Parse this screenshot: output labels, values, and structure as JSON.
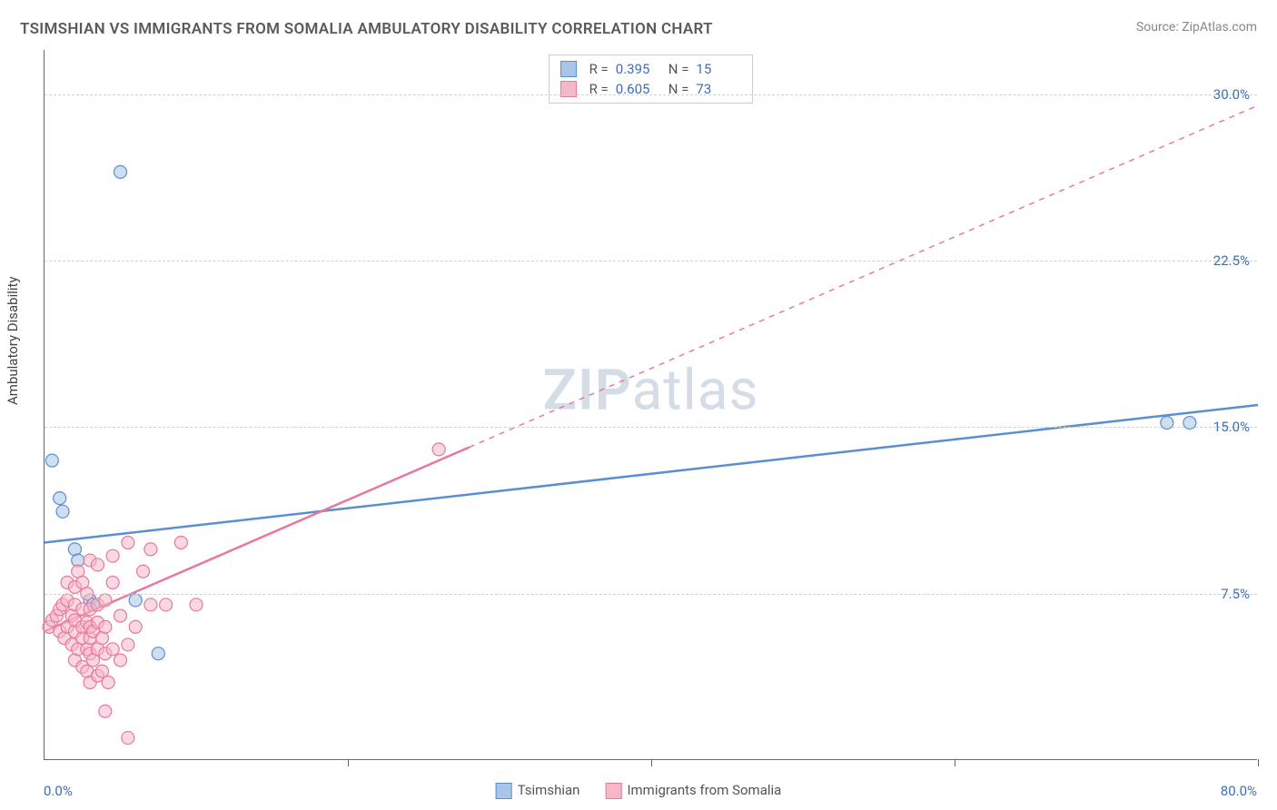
{
  "title": "TSIMSHIAN VS IMMIGRANTS FROM SOMALIA AMBULATORY DISABILITY CORRELATION CHART",
  "source": "Source: ZipAtlas.com",
  "ylabel": "Ambulatory Disability",
  "watermark_zip": "ZIP",
  "watermark_atlas": "atlas",
  "chart": {
    "type": "scatter-correlation",
    "background_color": "#ffffff",
    "grid_color": "#d0d0d0",
    "axis_color": "#666666",
    "text_color": "#5a5a5a",
    "value_color": "#3b6fb6",
    "xlim": [
      0,
      80
    ],
    "ylim": [
      0,
      32
    ],
    "xaxis_min_label": "0.0%",
    "xaxis_max_label": "80.0%",
    "xticks": [
      0,
      20,
      40,
      60,
      80
    ],
    "yticks": [
      {
        "v": 7.5,
        "label": "7.5%"
      },
      {
        "v": 15.0,
        "label": "15.0%"
      },
      {
        "v": 22.5,
        "label": "22.5%"
      },
      {
        "v": 30.0,
        "label": "30.0%"
      }
    ],
    "series": [
      {
        "name": "Tsimshian",
        "color_fill": "#a8c5e8",
        "color_stroke": "#5a8fd0",
        "legend_swatch_fill": "#a8c5e8",
        "legend_swatch_stroke": "#5a8fd0",
        "R": "0.395",
        "N": "15",
        "marker_radius": 7,
        "points": [
          [
            0.5,
            13.5
          ],
          [
            1.0,
            11.8
          ],
          [
            1.2,
            11.2
          ],
          [
            2.0,
            9.5
          ],
          [
            2.2,
            9.0
          ],
          [
            3.0,
            7.2
          ],
          [
            3.2,
            7.0
          ],
          [
            5.0,
            26.5
          ],
          [
            6.0,
            7.2
          ],
          [
            7.5,
            4.8
          ],
          [
            74.0,
            15.2
          ],
          [
            75.5,
            15.2
          ]
        ],
        "trend": {
          "x1": 0,
          "y1": 9.8,
          "x2": 80,
          "y2": 16.0,
          "solid_until_x": 80,
          "stroke_width": 2.5
        }
      },
      {
        "name": "Immigrants from Somalia",
        "color_fill": "#f4b8c8",
        "color_stroke": "#e77a9a",
        "legend_swatch_fill": "#f4b8c8",
        "legend_swatch_stroke": "#e77a9a",
        "R": "0.605",
        "N": "73",
        "marker_radius": 7,
        "points": [
          [
            0.3,
            6.0
          ],
          [
            0.5,
            6.3
          ],
          [
            0.8,
            6.5
          ],
          [
            1.0,
            5.8
          ],
          [
            1.0,
            6.8
          ],
          [
            1.2,
            7.0
          ],
          [
            1.3,
            5.5
          ],
          [
            1.5,
            6.0
          ],
          [
            1.5,
            7.2
          ],
          [
            1.5,
            8.0
          ],
          [
            1.8,
            5.2
          ],
          [
            1.8,
            6.5
          ],
          [
            2.0,
            4.5
          ],
          [
            2.0,
            5.8
          ],
          [
            2.0,
            6.3
          ],
          [
            2.0,
            7.0
          ],
          [
            2.0,
            7.8
          ],
          [
            2.2,
            5.0
          ],
          [
            2.2,
            8.5
          ],
          [
            2.5,
            4.2
          ],
          [
            2.5,
            5.5
          ],
          [
            2.5,
            6.0
          ],
          [
            2.5,
            6.8
          ],
          [
            2.5,
            8.0
          ],
          [
            2.8,
            4.0
          ],
          [
            2.8,
            5.0
          ],
          [
            2.8,
            6.2
          ],
          [
            2.8,
            7.5
          ],
          [
            3.0,
            3.5
          ],
          [
            3.0,
            4.8
          ],
          [
            3.0,
            5.5
          ],
          [
            3.0,
            6.0
          ],
          [
            3.0,
            6.8
          ],
          [
            3.0,
            9.0
          ],
          [
            3.2,
            4.5
          ],
          [
            3.2,
            5.8
          ],
          [
            3.5,
            3.8
          ],
          [
            3.5,
            5.0
          ],
          [
            3.5,
            6.2
          ],
          [
            3.5,
            7.0
          ],
          [
            3.5,
            8.8
          ],
          [
            3.8,
            4.0
          ],
          [
            3.8,
            5.5
          ],
          [
            4.0,
            2.2
          ],
          [
            4.0,
            4.8
          ],
          [
            4.0,
            6.0
          ],
          [
            4.0,
            7.2
          ],
          [
            4.2,
            3.5
          ],
          [
            4.5,
            5.0
          ],
          [
            4.5,
            8.0
          ],
          [
            4.5,
            9.2
          ],
          [
            5.0,
            4.5
          ],
          [
            5.0,
            6.5
          ],
          [
            5.5,
            1.0
          ],
          [
            5.5,
            5.2
          ],
          [
            5.5,
            9.8
          ],
          [
            6.0,
            6.0
          ],
          [
            6.5,
            8.5
          ],
          [
            7.0,
            9.5
          ],
          [
            7.0,
            7.0
          ],
          [
            8.0,
            7.0
          ],
          [
            9.0,
            9.8
          ],
          [
            10.0,
            7.0
          ],
          [
            26.0,
            14.0
          ]
        ],
        "trend": {
          "x1": 0,
          "y1": 5.8,
          "x2": 80,
          "y2": 29.5,
          "solid_until_x": 28,
          "stroke_width": 2.5
        }
      }
    ]
  },
  "top_legend_label_R": "R =",
  "top_legend_label_N": "N =",
  "bottom_legend": [
    {
      "name": "Tsimshian",
      "fill": "#a8c5e8",
      "stroke": "#5a8fd0"
    },
    {
      "name": "Immigrants from Somalia",
      "fill": "#f4b8c8",
      "stroke": "#e77a9a"
    }
  ]
}
